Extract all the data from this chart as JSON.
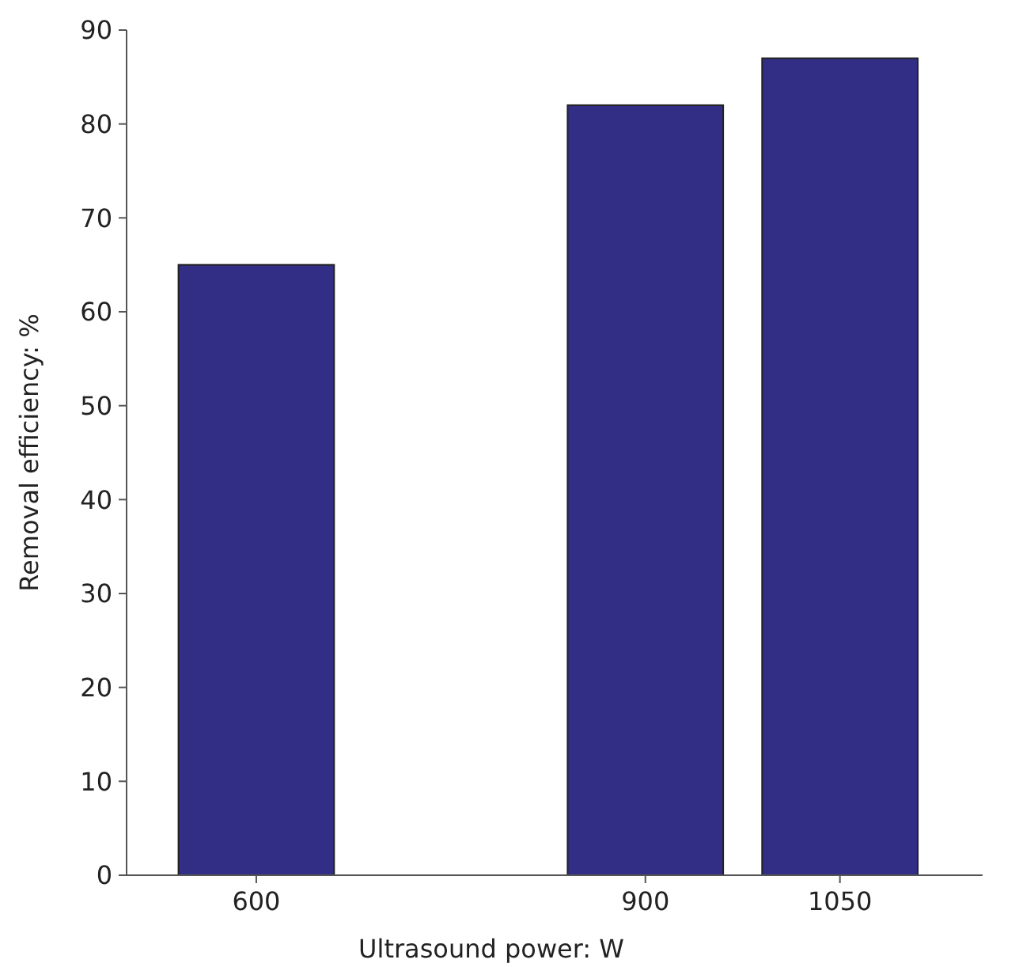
{
  "chart_data": {
    "type": "bar",
    "xlabel": "Ultrasound power: W",
    "ylabel": "Removal efficiency: %",
    "x": [
      600,
      900,
      1050
    ],
    "values": [
      65,
      82,
      87
    ],
    "color": "#332e85",
    "xlim": [
      500,
      1160
    ],
    "xticks": [
      600,
      900,
      1050
    ],
    "ylim": [
      0,
      90
    ],
    "yticks": [
      0,
      10,
      20,
      30,
      40,
      50,
      60,
      70,
      80,
      90
    ]
  }
}
